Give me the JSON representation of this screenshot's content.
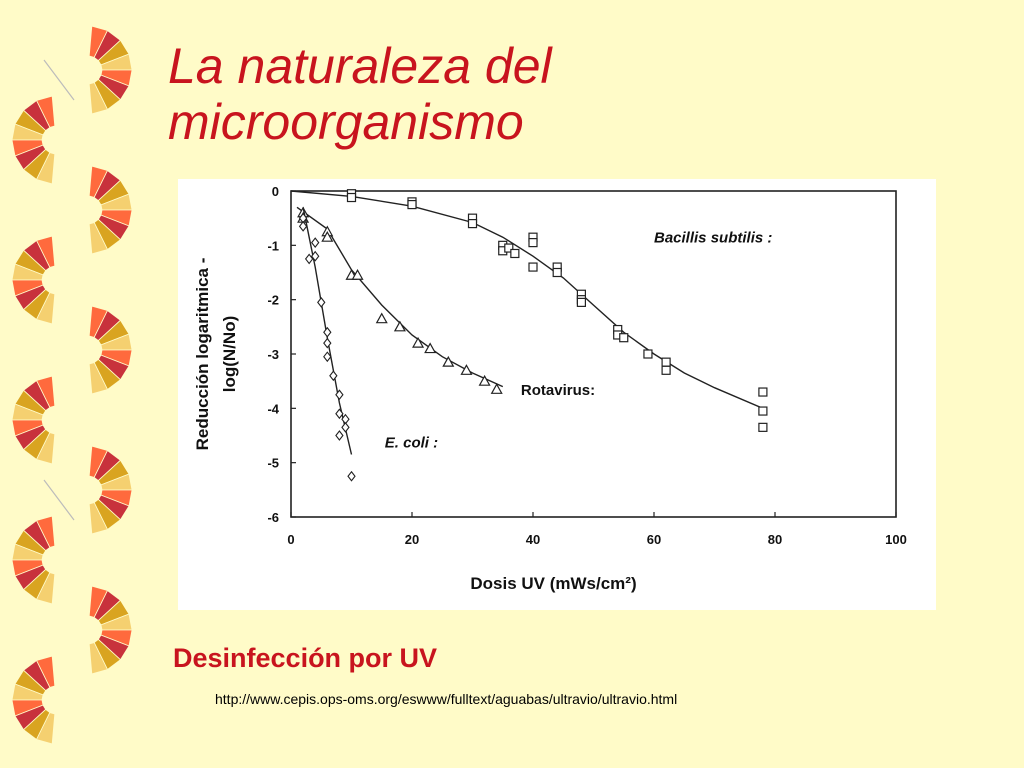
{
  "slide": {
    "title": "La naturaleza del microorganismo",
    "subtitle": "Desinfección por UV",
    "source": "http://www.cepis.ops-oms.org/eswww/fulltext/aguabas/ultravio/ultravio.html"
  },
  "colors": {
    "background": "#fffbc8",
    "title": "#c8141e",
    "deco_orange": "#ff6a3d",
    "deco_red": "#c8323c",
    "deco_gold": "#d9a420",
    "deco_light": "#f5d070"
  },
  "chart_data": {
    "type": "scatter",
    "xlabel": "Dosis UV (mWs/cm²)",
    "ylabel_line1": "Reducción logaritmica -",
    "ylabel_line2": "log(N/No)",
    "xlim": [
      0,
      100
    ],
    "ylim": [
      -6,
      0
    ],
    "x_ticks": [
      "0",
      "20",
      "40",
      "60",
      "80",
      "100"
    ],
    "y_ticks": [
      "0",
      "-1",
      "-2",
      "-3",
      "-4",
      "-5",
      "-6"
    ],
    "grid": false,
    "series": [
      {
        "name": "Bacillis subtilis :",
        "marker": "square",
        "points": [
          [
            10,
            -0.05
          ],
          [
            10,
            -0.12
          ],
          [
            20,
            -0.2
          ],
          [
            20,
            -0.25
          ],
          [
            30,
            -0.5
          ],
          [
            30,
            -0.6
          ],
          [
            35,
            -1.0
          ],
          [
            35,
            -1.1
          ],
          [
            36,
            -1.05
          ],
          [
            37,
            -1.15
          ],
          [
            40,
            -0.85
          ],
          [
            40,
            -0.95
          ],
          [
            40,
            -1.4
          ],
          [
            44,
            -1.4
          ],
          [
            44,
            -1.5
          ],
          [
            48,
            -1.9
          ],
          [
            48,
            -2.0
          ],
          [
            48,
            -2.05
          ],
          [
            54,
            -2.55
          ],
          [
            54,
            -2.65
          ],
          [
            55,
            -2.7
          ],
          [
            59,
            -3.0
          ],
          [
            62,
            -3.15
          ],
          [
            62,
            -3.3
          ],
          [
            78,
            -3.7
          ],
          [
            78,
            -4.05
          ],
          [
            78,
            -4.35
          ]
        ],
        "curve": [
          [
            0,
            0
          ],
          [
            10,
            -0.1
          ],
          [
            20,
            -0.28
          ],
          [
            30,
            -0.58
          ],
          [
            35,
            -0.85
          ],
          [
            40,
            -1.2
          ],
          [
            45,
            -1.6
          ],
          [
            50,
            -2.1
          ],
          [
            55,
            -2.6
          ],
          [
            60,
            -3.0
          ],
          [
            65,
            -3.35
          ],
          [
            70,
            -3.62
          ],
          [
            78,
            -4.0
          ]
        ]
      },
      {
        "name": "Rotavirus:",
        "marker": "triangle",
        "points": [
          [
            2,
            -0.4
          ],
          [
            2,
            -0.5
          ],
          [
            6,
            -0.75
          ],
          [
            6,
            -0.85
          ],
          [
            10,
            -1.55
          ],
          [
            11,
            -1.55
          ],
          [
            15,
            -2.35
          ],
          [
            18,
            -2.5
          ],
          [
            21,
            -2.8
          ],
          [
            23,
            -2.9
          ],
          [
            26,
            -3.15
          ],
          [
            29,
            -3.3
          ],
          [
            32,
            -3.5
          ],
          [
            34,
            -3.65
          ]
        ],
        "curve": [
          [
            1,
            -0.3
          ],
          [
            6,
            -0.7
          ],
          [
            10,
            -1.45
          ],
          [
            15,
            -2.1
          ],
          [
            20,
            -2.65
          ],
          [
            25,
            -3.05
          ],
          [
            30,
            -3.35
          ],
          [
            35,
            -3.6
          ]
        ]
      },
      {
        "name": "E. coli :",
        "marker": "diamond",
        "points": [
          [
            2,
            -0.5
          ],
          [
            2,
            -0.65
          ],
          [
            3,
            -1.25
          ],
          [
            4,
            -0.95
          ],
          [
            4,
            -1.2
          ],
          [
            5,
            -2.05
          ],
          [
            6,
            -2.6
          ],
          [
            6,
            -2.8
          ],
          [
            6,
            -3.05
          ],
          [
            7,
            -3.4
          ],
          [
            8,
            -3.75
          ],
          [
            8,
            -4.1
          ],
          [
            8,
            -4.5
          ],
          [
            9,
            -4.2
          ],
          [
            9,
            -4.35
          ],
          [
            10,
            -5.25
          ]
        ],
        "curve": [
          [
            2,
            -0.3
          ],
          [
            4,
            -1.4
          ],
          [
            6,
            -2.7
          ],
          [
            8,
            -3.9
          ],
          [
            10,
            -4.85
          ]
        ]
      }
    ]
  }
}
